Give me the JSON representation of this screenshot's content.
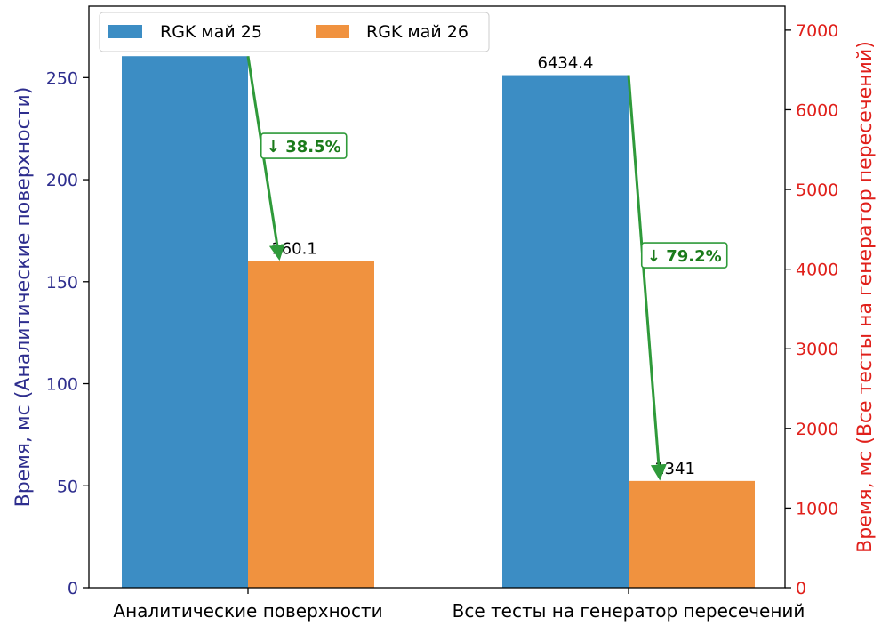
{
  "chart_data": {
    "type": "bar",
    "categories": [
      "Аналитические поверхности",
      "Все тесты на генератор пересечений"
    ],
    "series": [
      {
        "name": "RGK май 25",
        "values": [
          260.5,
          6434.4
        ],
        "value_labels": [
          "260.5",
          "6434.4"
        ],
        "color": "#3c8dc4"
      },
      {
        "name": "RGK май 26",
        "values": [
          160.1,
          1341
        ],
        "value_labels": [
          "160.1",
          "1341"
        ],
        "color": "#f0923f"
      }
    ],
    "axis_assignment": [
      "left",
      "right"
    ],
    "y_left": {
      "label": "Время, мс (Аналитические поверхности)",
      "ylim": [
        0,
        285
      ],
      "ticks": [
        0,
        50,
        100,
        150,
        200,
        250
      ],
      "color": "#2e2e8e"
    },
    "y_right": {
      "label": "Время, мс (Все тесты на генератор пересечений)",
      "ylim": [
        0,
        7300
      ],
      "ticks": [
        0,
        1000,
        2000,
        3000,
        4000,
        5000,
        6000,
        7000
      ],
      "color": "#e0201b"
    },
    "annotations": [
      {
        "category": 0,
        "text": "↓ 38.5%"
      },
      {
        "category": 1,
        "text": "↓ 79.2%"
      }
    ],
    "annotation_color": "#2f9a3a",
    "legend_position": "top-left",
    "grid": false,
    "xlabel": "",
    "title": ""
  }
}
